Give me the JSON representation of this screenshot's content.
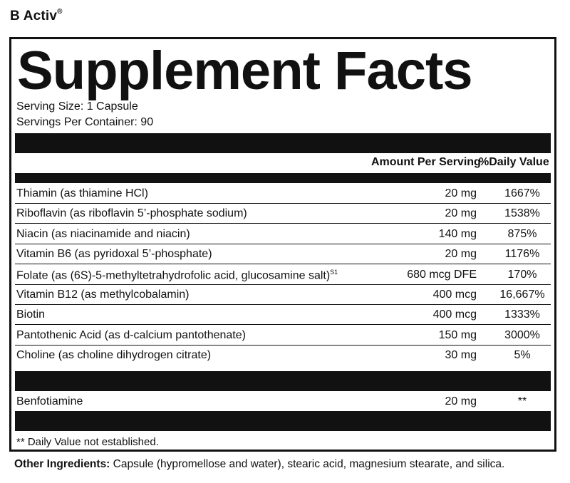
{
  "product": {
    "name": "B Activ",
    "mark": "®"
  },
  "panel": {
    "title": "Supplement Facts",
    "serving_size": "Serving Size: 1 Capsule",
    "servings_per_container": "Servings Per Container: 90",
    "header_amount": "Amount Per Serving",
    "header_dv": "%Daily Value",
    "rows": [
      {
        "name": "Thiamin (as thiamine HCl)",
        "amount": "20 mg",
        "dv": "1667%"
      },
      {
        "name": "Riboflavin (as riboflavin 5’-phosphate sodium)",
        "amount": "20 mg",
        "dv": "1538%"
      },
      {
        "name": "Niacin (as niacinamide and niacin)",
        "amount": "140 mg",
        "dv": "875%"
      },
      {
        "name": "Vitamin B6 (as pyridoxal 5’-phosphate)",
        "amount": "20 mg",
        "dv": "1176%"
      },
      {
        "name": "Folate (as (6S)-5-methyltetrahydrofolic acid, glucosamine salt)",
        "sup": "S1",
        "amount": "680 mcg DFE",
        "dv": "170%"
      },
      {
        "name": "Vitamin B12 (as methylcobalamin)",
        "amount": "400 mcg",
        "dv": "16,667%"
      },
      {
        "name": "Biotin",
        "amount": "400 mcg",
        "dv": "1333%"
      },
      {
        "name": "Pantothenic Acid (as d-calcium pantothenate)",
        "amount": "150 mg",
        "dv": "3000%"
      },
      {
        "name": "Choline (as choline dihydrogen citrate)",
        "amount": "30 mg",
        "dv": "5%"
      }
    ],
    "extra_row": {
      "name": "Benfotiamine",
      "amount": "20 mg",
      "dv": "**"
    },
    "footnote": "** Daily Value not established."
  },
  "other_ingredients": {
    "label": "Other Ingredients:",
    "text": " Capsule (hypromellose and water), stearic acid, magnesium stearate, and silica."
  }
}
